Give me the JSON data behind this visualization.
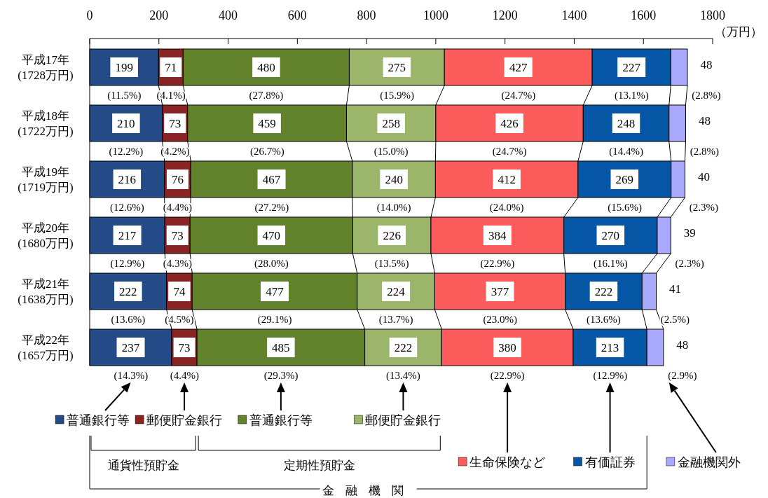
{
  "chart_data": {
    "type": "bar",
    "orientation": "horizontal",
    "stacked": true,
    "data_labels": true,
    "legend": "bottom",
    "xlabel": "（万円）",
    "xlim": [
      0,
      1800
    ],
    "xticks": [
      0,
      200,
      400,
      600,
      800,
      1000,
      1200,
      1400,
      1600,
      1800
    ],
    "categories": [
      "平成17年\n(1728万円)",
      "平成18年\n(1722万円)",
      "平成19年\n(1719万円)",
      "平成20年\n(1680万円)",
      "平成21年\n(1638万円)",
      "平成22年\n(1657万円)"
    ],
    "series": [
      {
        "name": "普通銀行等",
        "color": "#244b87",
        "values": [
          199,
          210,
          216,
          217,
          222,
          237
        ]
      },
      {
        "name": "郵便貯金銀行",
        "color": "#8b2323",
        "values": [
          71,
          73,
          76,
          73,
          74,
          73
        ]
      },
      {
        "name": "普通銀行等",
        "color": "#62832b",
        "values": [
          480,
          459,
          467,
          470,
          477,
          485
        ]
      },
      {
        "name": "郵便貯金銀行",
        "color": "#9bb56b",
        "values": [
          275,
          258,
          240,
          226,
          224,
          222
        ]
      },
      {
        "name": "生命保険など",
        "color": "#fc5c5c",
        "values": [
          427,
          426,
          412,
          384,
          377,
          380
        ]
      },
      {
        "name": "有価証券",
        "color": "#0656a6",
        "values": [
          227,
          248,
          269,
          270,
          222,
          213
        ]
      },
      {
        "name": "金融機関外",
        "color": "#a8a8fc",
        "values": [
          48,
          48,
          40,
          39,
          41,
          48
        ]
      }
    ],
    "annotations": [
      "通貨性預貯金",
      "定期性預貯金",
      "金融機関",
      {
        "text": "(11.5%)",
        "x": 100,
        "y": "平成17年\n(1728万円)"
      },
      {
        "text": "(4.1%)",
        "x": 235,
        "y": "平成17年\n(1728万円)"
      },
      {
        "text": "(27.8%)",
        "x": 510,
        "y": "平成17年\n(1728万円)"
      },
      {
        "text": "(15.9%)",
        "x": 888,
        "y": "平成17年\n(1728万円)"
      },
      {
        "text": "(24.7%)",
        "x": 1239,
        "y": "平成17年\n(1728万円)"
      },
      {
        "text": "(13.1%)",
        "x": 1566,
        "y": "平成17年\n(1728万円)"
      },
      {
        "text": "(2.8%)",
        "x": 1727,
        "y": "平成17年\n(1728万円)"
      },
      {
        "text": "(12.2%)",
        "x": 105,
        "y": "平成18年\n(1722万円)"
      },
      {
        "text": "(4.2%)",
        "x": 247,
        "y": "平成18年\n(1722万円)"
      },
      {
        "text": "(26.7%)",
        "x": 513,
        "y": "平成18年\n(1722万円)"
      },
      {
        "text": "(15.0%)",
        "x": 871,
        "y": "平成18年\n(1722万円)"
      },
      {
        "text": "(24.7%)",
        "x": 1213,
        "y": "平成18年\n(1722万円)"
      },
      {
        "text": "(14.4%)",
        "x": 1550,
        "y": "平成18年\n(1722万円)"
      },
      {
        "text": "(2.8%)",
        "x": 1722,
        "y": "平成18年\n(1722万円)"
      },
      {
        "text": "(12.6%)",
        "x": 108,
        "y": "平成19年\n(1719万円)"
      },
      {
        "text": "(4.4%)",
        "x": 254,
        "y": "平成19年\n(1719万円)"
      },
      {
        "text": "(27.2%)",
        "x": 526,
        "y": "平成19年\n(1719万円)"
      },
      {
        "text": "(14.0%)",
        "x": 879,
        "y": "平成19年\n(1719万円)"
      },
      {
        "text": "(24.0%)",
        "x": 1205,
        "y": "平成19年\n(1719万円)"
      },
      {
        "text": "(15.6%)",
        "x": 1546,
        "y": "平成19年\n(1719万円)"
      },
      {
        "text": "(2.3%)",
        "x": 1720,
        "y": "平成19年\n(1719万円)"
      },
      {
        "text": "(12.9%)",
        "x": 109,
        "y": "平成20年\n(1680万円)"
      },
      {
        "text": "(4.3%)",
        "x": 254,
        "y": "平成20年\n(1680万円)"
      },
      {
        "text": "(28.0%)",
        "x": 525,
        "y": "平成20年\n(1680万円)"
      },
      {
        "text": "(13.5%)",
        "x": 873,
        "y": "平成20年\n(1680万円)"
      },
      {
        "text": "(22.9%)",
        "x": 1178,
        "y": "平成20年\n(1680万円)"
      },
      {
        "text": "(16.1%)",
        "x": 1505,
        "y": "平成20年\n(1680万円)"
      },
      {
        "text": "(2.3%)",
        "x": 1679,
        "y": "平成20年\n(1680万円)"
      },
      {
        "text": "(13.6%)",
        "x": 111,
        "y": "平成21年\n(1638万円)"
      },
      {
        "text": "(4.5%)",
        "x": 259,
        "y": "平成21年\n(1638万円)"
      },
      {
        "text": "(29.1%)",
        "x": 535,
        "y": "平成21年\n(1638万円)"
      },
      {
        "text": "(13.7%)",
        "x": 885,
        "y": "平成21年\n(1638万円)"
      },
      {
        "text": "(23.0%)",
        "x": 1186,
        "y": "平成21年\n(1638万円)"
      },
      {
        "text": "(13.6%)",
        "x": 1485,
        "y": "平成21年\n(1638万円)"
      },
      {
        "text": "(2.5%)",
        "x": 1637,
        "y": "平成21年\n(1638万円)"
      },
      {
        "text": "(14.3%)",
        "x": 119,
        "y": "平成22年\n(1657万円)"
      },
      {
        "text": "(4.4%)",
        "x": 274,
        "y": "平成22年\n(1657万円)"
      },
      {
        "text": "(29.3%)",
        "x": 553,
        "y": "平成22年\n(1657万円)"
      },
      {
        "text": "(13.4%)",
        "x": 906,
        "y": "平成22年\n(1657万円)"
      },
      {
        "text": "(22.9%)",
        "x": 1207,
        "y": "平成22年\n(1657万円)"
      },
      {
        "text": "(12.9%)",
        "x": 1504,
        "y": "平成22年\n(1657万円)"
      },
      {
        "text": "(2.9%)",
        "x": 1658,
        "y": "平成22年\n(1657万円)"
      }
    ]
  }
}
